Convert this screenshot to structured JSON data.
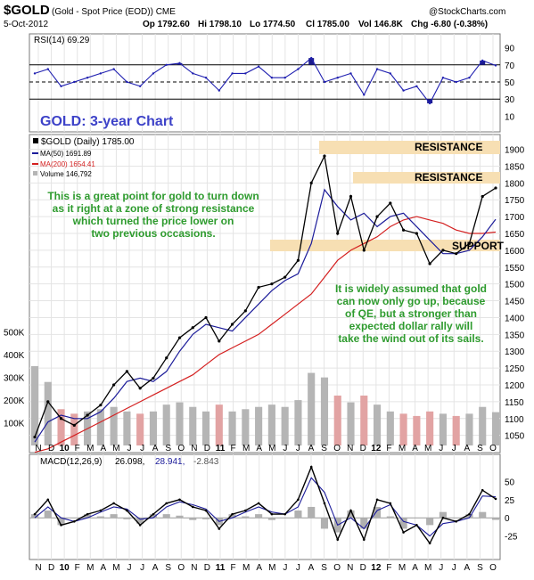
{
  "header": {
    "symbol": "$GOLD",
    "description": "(Gold - Spot Price (EOD)) CME",
    "credit": "@StockCharts.com",
    "date": "5-Oct-2012",
    "open": "Op 1792.60",
    "high": "Hi 1798.10",
    "low": "Lo 1774.50",
    "close": "Cl 1785.00",
    "volume": "Vol 146.8K",
    "change": "Chg -6.80 (-0.38%)"
  },
  "colors": {
    "rsi_line": "#1f1fb0",
    "rsi_fill": "#1b1b8c",
    "ma50": "#1c1c9a",
    "ma200": "#d42020",
    "price": "#000000",
    "volume_up": "#b5b5b5",
    "volume_down": "#e2a3a3",
    "band": "#f7dfb3",
    "annotation": "#2e9b2e",
    "title": "#3d42c8",
    "panel_bg": "#ffffff",
    "panel_border": "#7a7a7a"
  },
  "title_overlay": "GOLD: 3-year Chart",
  "legend": {
    "price": "$GOLD (Daily) 1785.00",
    "ma50": "MA(50) 1691.89",
    "ma200": "MA(200) 1654.41",
    "volume": "Volume 146,792"
  },
  "rsi": {
    "label": "RSI(14) 69.29",
    "ticks": [
      "90",
      "70",
      "50",
      "30",
      "10"
    ]
  },
  "macd": {
    "label_name": "MACD(12,26,9)",
    "label_macd": "26.098,",
    "label_signal": "28.941,",
    "label_hist": "-2.843",
    "ticks": [
      "50",
      "25",
      "0",
      "-25"
    ]
  },
  "annotations": {
    "resistance_top": "RESISTANCE",
    "resistance_mid": "RESISTANCE",
    "support": "SUPPORT",
    "note_left": [
      "This is a great point for gold to turn down",
      "as it right at a zone of strong resistance",
      "which turned the price lower on",
      "two previous occasions."
    ],
    "note_right": [
      "It is widely assumed that gold",
      "can now only go up, because",
      "of QE, but a stronger than",
      "expected dollar rally will",
      "take the wind out of its sails."
    ]
  },
  "axes": {
    "price_ticks": [
      "1900",
      "1850",
      "1800",
      "1750",
      "1700",
      "1650",
      "1600",
      "1550",
      "1500",
      "1450",
      "1400",
      "1350",
      "1300",
      "1250",
      "1200",
      "1150",
      "1100",
      "1050"
    ],
    "volume_ticks": [
      "500K",
      "400K",
      "300K",
      "200K",
      "100K"
    ],
    "months": [
      "N",
      "D",
      "10",
      "F",
      "M",
      "A",
      "M",
      "J",
      "J",
      "A",
      "S",
      "O",
      "N",
      "D",
      "11",
      "F",
      "M",
      "A",
      "M",
      "J",
      "J",
      "A",
      "S",
      "O",
      "N",
      "D",
      "12",
      "F",
      "M",
      "A",
      "M",
      "J",
      "J",
      "A",
      "S",
      "O"
    ]
  },
  "chart_data": {
    "type": "line",
    "title": "$GOLD (Gold - Spot Price (EOD)) CME",
    "x_unit": "month",
    "x": [
      "Nov 2009",
      "Dec 2009",
      "Jan 2010",
      "Feb 2010",
      "Mar 2010",
      "Apr 2010",
      "May 2010",
      "Jun 2010",
      "Jul 2010",
      "Aug 2010",
      "Sep 2010",
      "Oct 2010",
      "Nov 2010",
      "Dec 2010",
      "Jan 2011",
      "Feb 2011",
      "Mar 2011",
      "Apr 2011",
      "May 2011",
      "Jun 2011",
      "Jul 2011",
      "Aug 2011",
      "Sep 2011",
      "Oct 2011",
      "Nov 2011",
      "Dec 2011",
      "Jan 2012",
      "Feb 2012",
      "Mar 2012",
      "Apr 2012",
      "May 2012",
      "Jun 2012",
      "Jul 2012",
      "Aug 2012",
      "Sep 2012",
      "Oct 2012"
    ],
    "ylim": [
      1020,
      1920
    ],
    "series": [
      {
        "name": "$GOLD",
        "values": [
          1045,
          1150,
          1100,
          1080,
          1110,
          1140,
          1200,
          1240,
          1190,
          1220,
          1280,
          1340,
          1370,
          1400,
          1330,
          1380,
          1420,
          1490,
          1500,
          1520,
          1570,
          1800,
          1880,
          1650,
          1760,
          1600,
          1700,
          1740,
          1660,
          1650,
          1560,
          1600,
          1590,
          1620,
          1760,
          1785
        ]
      },
      {
        "name": "MA(50)",
        "values": [
          1030,
          1090,
          1110,
          1100,
          1100,
          1120,
          1160,
          1210,
          1220,
          1210,
          1240,
          1300,
          1350,
          1380,
          1370,
          1360,
          1400,
          1440,
          1480,
          1510,
          1530,
          1620,
          1780,
          1730,
          1690,
          1710,
          1670,
          1700,
          1710,
          1670,
          1630,
          1590,
          1590,
          1600,
          1640,
          1692
        ]
      },
      {
        "name": "MA(200)",
        "values": [
          1000,
          1010,
          1030,
          1050,
          1070,
          1090,
          1110,
          1130,
          1150,
          1170,
          1190,
          1210,
          1230,
          1260,
          1290,
          1310,
          1330,
          1350,
          1380,
          1410,
          1440,
          1470,
          1520,
          1570,
          1600,
          1620,
          1640,
          1670,
          1690,
          1700,
          1690,
          1680,
          1660,
          1650,
          1650,
          1654
        ]
      }
    ],
    "volume": [
      350,
      280,
      160,
      140,
      150,
      160,
      170,
      150,
      140,
      150,
      180,
      190,
      170,
      150,
      180,
      150,
      160,
      170,
      180,
      170,
      200,
      320,
      300,
      220,
      190,
      220,
      180,
      150,
      140,
      130,
      150,
      140,
      130,
      140,
      170,
      147
    ],
    "volume_unit": "K",
    "volume_ylim": [
      0,
      550
    ],
    "rsi": [
      60,
      65,
      45,
      50,
      55,
      60,
      65,
      50,
      45,
      60,
      70,
      72,
      60,
      55,
      40,
      60,
      60,
      68,
      55,
      55,
      65,
      78,
      50,
      55,
      60,
      35,
      65,
      60,
      40,
      45,
      25,
      55,
      50,
      55,
      75,
      69.29
    ],
    "rsi_ylim": [
      0,
      100
    ],
    "macd": [
      5,
      25,
      -10,
      -5,
      5,
      10,
      20,
      10,
      -10,
      5,
      20,
      25,
      15,
      10,
      -15,
      5,
      10,
      20,
      5,
      5,
      25,
      70,
      20,
      -30,
      10,
      -30,
      25,
      20,
      -20,
      -10,
      -35,
      0,
      -5,
      5,
      38,
      26.098
    ],
    "macd_signal": [
      0,
      15,
      0,
      -5,
      0,
      8,
      15,
      12,
      -2,
      0,
      15,
      22,
      18,
      12,
      -5,
      0,
      8,
      15,
      8,
      5,
      15,
      55,
      35,
      -10,
      0,
      -15,
      10,
      18,
      -5,
      -10,
      -25,
      -8,
      -5,
      0,
      30,
      28.941
    ],
    "macd_ylim": [
      -50,
      75
    ]
  }
}
